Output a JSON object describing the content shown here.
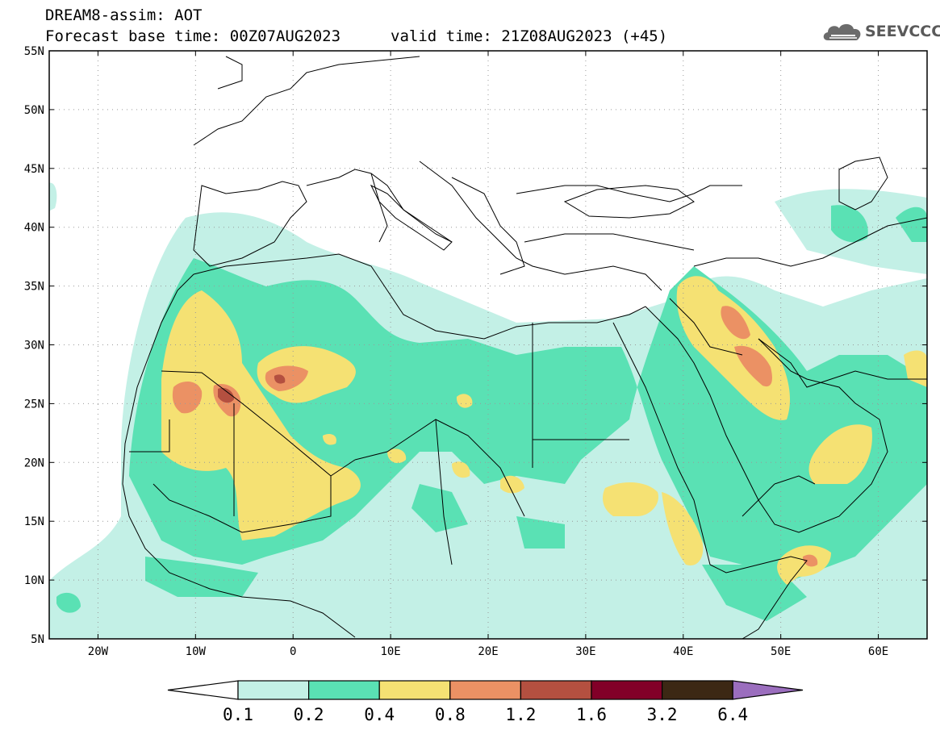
{
  "header": {
    "title": "DREAM8-assim: AOT",
    "base_time": "Forecast base time: 00Z07AUG2023",
    "valid_time": "valid time: 21Z08AUG2023 (+45)"
  },
  "logo": {
    "text": "SEEVCCC",
    "icon": "cloud-logo-icon"
  },
  "map": {
    "lat_ticks": [
      "55N",
      "50N",
      "45N",
      "40N",
      "35N",
      "30N",
      "25N",
      "20N",
      "15N",
      "10N",
      "5N"
    ],
    "lon_ticks": [
      "20W",
      "10W",
      "0",
      "10E",
      "20E",
      "30E",
      "40E",
      "50E",
      "60E"
    ],
    "lon_range": [
      -25,
      65
    ],
    "lat_range": [
      5,
      55
    ]
  },
  "colorbar": {
    "labels": [
      "0.1",
      "0.2",
      "0.4",
      "0.8",
      "1.2",
      "1.6",
      "3.2",
      "6.4"
    ],
    "colors": [
      "#ffffff",
      "#c3f0e6",
      "#5ae1b4",
      "#f5e173",
      "#eb9164",
      "#b45040",
      "#820028",
      "#3c2814",
      "#9b6ebe"
    ]
  }
}
